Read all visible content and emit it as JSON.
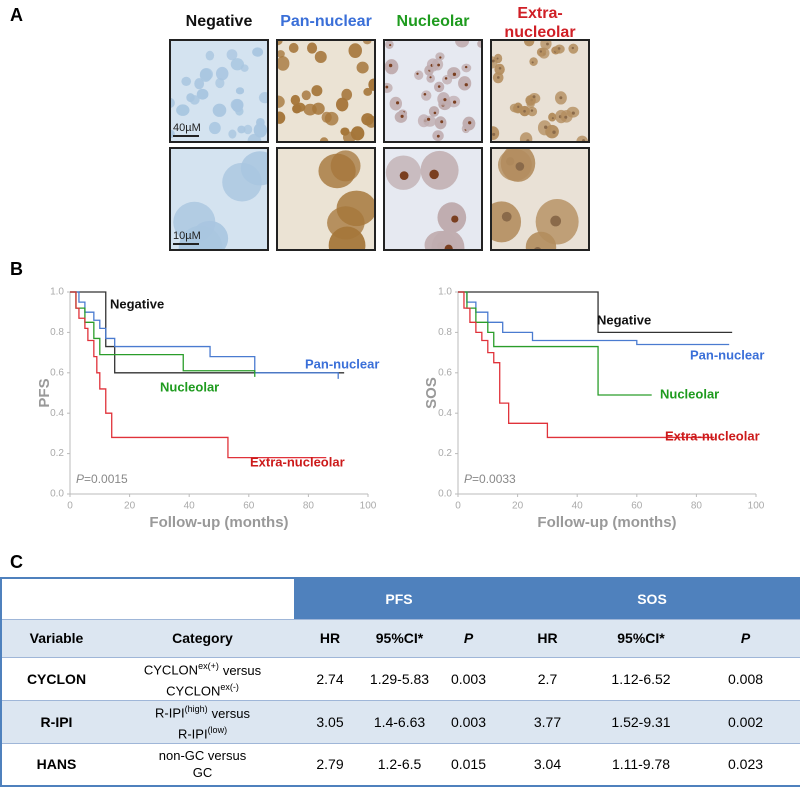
{
  "panel_a": {
    "label": "A",
    "columns": [
      {
        "header": [
          "Negative"
        ],
        "color": "#111111"
      },
      {
        "header": [
          "Pan-nuclear"
        ],
        "color": "#3a6fd8"
      },
      {
        "header": [
          "Nucleolar"
        ],
        "color": "#1e9b1e"
      },
      {
        "header": [
          "Extra-",
          "nucleolar"
        ],
        "color": "#d01f26"
      }
    ],
    "scale_bars": [
      "40µM",
      "10µM"
    ]
  },
  "panel_b": {
    "label": "B"
  },
  "chart_data": [
    {
      "type": "step",
      "ylabel": "PFS",
      "xlabel": "Follow-up (months)",
      "xlim": [
        0,
        100
      ],
      "ylim": [
        0,
        1
      ],
      "xticks": [
        0,
        20,
        40,
        60,
        80,
        100
      ],
      "yticks": [
        {
          "value": 0,
          "label": "0.0"
        },
        0.2,
        0.4,
        0.6,
        0.8,
        {
          "value": 1,
          "label": "1.0"
        }
      ],
      "annotation": {
        "italic": "P",
        "text": "=0.0015"
      },
      "series": [
        {
          "name": "Negative",
          "color": "#333333",
          "x": [
            0,
            12,
            15,
            92
          ],
          "values": [
            1.0,
            0.73,
            0.6,
            0.6
          ]
        },
        {
          "name": "Pan-nuclear",
          "color": "#4a7bd0",
          "x": [
            0,
            3,
            5,
            8,
            10,
            12,
            15,
            47,
            62,
            90
          ],
          "values": [
            1.0,
            0.95,
            0.9,
            0.86,
            0.82,
            0.77,
            0.73,
            0.68,
            0.6,
            0.57
          ]
        },
        {
          "name": "Nucleolar",
          "color": "#2a9d2a",
          "x": [
            0,
            2,
            5,
            8,
            10,
            38,
            62
          ],
          "values": [
            1.0,
            0.92,
            0.85,
            0.77,
            0.69,
            0.61,
            0.58
          ]
        },
        {
          "name": "Extra-nucleolar",
          "color": "#e0323a",
          "x": [
            0,
            2,
            3,
            5,
            6,
            8,
            9,
            10,
            12,
            14,
            53,
            86
          ],
          "values": [
            1.0,
            0.92,
            0.87,
            0.82,
            0.76,
            0.68,
            0.6,
            0.52,
            0.4,
            0.28,
            0.18,
            0.18
          ]
        }
      ]
    },
    {
      "type": "step",
      "ylabel": "SOS",
      "xlabel": "Follow-up (months)",
      "xlim": [
        0,
        100
      ],
      "ylim": [
        0,
        1
      ],
      "xticks": [
        0,
        20,
        40,
        60,
        80,
        100
      ],
      "yticks": [
        {
          "value": 0,
          "label": "0.0"
        },
        0.2,
        0.4,
        0.6,
        0.8,
        {
          "value": 1,
          "label": "1.0"
        }
      ],
      "annotation": {
        "italic": "P",
        "text": "=0.0033"
      },
      "series": [
        {
          "name": "Negative",
          "color": "#333333",
          "x": [
            0,
            47,
            92
          ],
          "values": [
            1.0,
            0.8,
            0.8
          ]
        },
        {
          "name": "Pan-nuclear",
          "color": "#4a7bd0",
          "x": [
            0,
            3,
            6,
            10,
            15,
            25,
            60,
            91
          ],
          "values": [
            1.0,
            0.95,
            0.9,
            0.85,
            0.8,
            0.76,
            0.74,
            0.74
          ]
        },
        {
          "name": "Nucleolar",
          "color": "#2a9d2a",
          "x": [
            0,
            3,
            6,
            10,
            12,
            47,
            65
          ],
          "values": [
            1.0,
            0.92,
            0.85,
            0.8,
            0.73,
            0.49,
            0.49
          ]
        },
        {
          "name": "Extra-nucleolar",
          "color": "#e0323a",
          "x": [
            0,
            2,
            4,
            6,
            8,
            10,
            12,
            14,
            17,
            30,
            86
          ],
          "values": [
            1.0,
            0.92,
            0.85,
            0.8,
            0.76,
            0.7,
            0.65,
            0.45,
            0.35,
            0.28,
            0.28
          ]
        }
      ]
    }
  ],
  "panel_c": {
    "label": "C"
  },
  "table": {
    "groups": [
      "PFS",
      "SOS"
    ],
    "header": [
      "Variable",
      "Category",
      "HR",
      "95%CI*",
      "P",
      "HR",
      "95%CI*",
      "P"
    ],
    "rows": [
      {
        "variable": "CYCLON",
        "category": [
          {
            "base": "CYCLON",
            "sup": "ex(+)",
            "after": "versus"
          },
          {
            "base": "CYCLON",
            "sup": "ex(-)"
          }
        ],
        "cells": [
          2.74,
          "1.29-5.83",
          0.003,
          2.7,
          "1.12-6.52",
          0.008
        ]
      },
      {
        "variable": "R-IPI",
        "category": [
          {
            "base": "R-IPI",
            "sup": "(high)",
            "after": "versus"
          },
          {
            "base": "R-IPI",
            "sup": "(low)"
          }
        ],
        "cells": [
          3.05,
          "1.4-6.63",
          0.003,
          3.77,
          "1.52-9.31",
          0.002
        ]
      },
      {
        "variable": "HANS",
        "category": [
          {
            "base": "non-GC versus"
          },
          {
            "base": "GC"
          }
        ],
        "cells": [
          2.79,
          "1.2-6.5",
          0.015,
          3.04,
          "1.11-9.78",
          0.023
        ]
      }
    ]
  }
}
